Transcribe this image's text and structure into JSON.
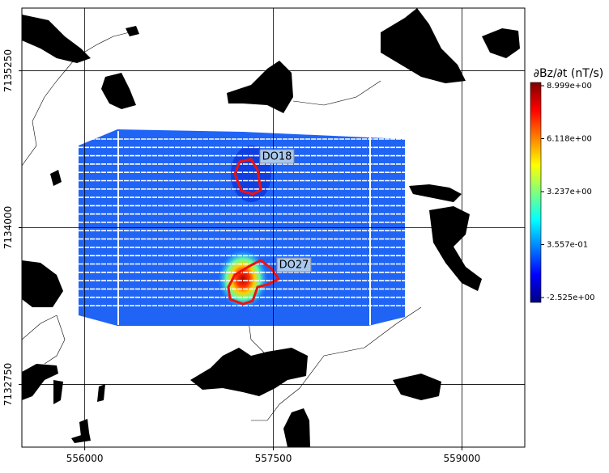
{
  "chart_data": {
    "type": "map",
    "xlim": [
      555500,
      559500
    ],
    "ylim": [
      7132250,
      7135750
    ],
    "xticks": [
      556000,
      557500,
      559000
    ],
    "yticks": [
      7132750,
      7134000,
      7135250
    ],
    "grid": true,
    "annotations": [
      "DO18",
      "DO27"
    ],
    "colorbar": {
      "label": "∂Bz/∂t (nT/s)",
      "lim": [
        -2.79,
        9.175
      ],
      "ticks": [
        {
          "value": -2.525,
          "label": "-2.525e+00"
        },
        {
          "value": 0.3557,
          "label": "3.557e-01"
        },
        {
          "value": 3.237,
          "label": "3.237e+00"
        },
        {
          "value": 6.118,
          "label": "6.118e+00"
        },
        {
          "value": 8.999,
          "label": "8.999e+00"
        }
      ],
      "colors": [
        "#00007f",
        "#0000ff",
        "#007fff",
        "#00ffff",
        "#7fff7f",
        "#ffff00",
        "#ff7f00",
        "#ff0000",
        "#7f0000"
      ]
    }
  }
}
